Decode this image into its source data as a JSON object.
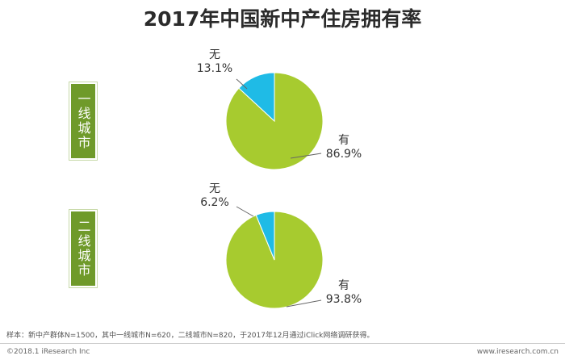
{
  "title": "2017年中国新中产住房拥有率",
  "colors": {
    "yes": "#a7cb2f",
    "no": "#1fbbe6",
    "tag": "#6f9a2a"
  },
  "chart_data": [
    {
      "type": "pie",
      "group": "一线城市",
      "slices": [
        {
          "label": "有",
          "pct_label": "86.9%",
          "value": 86.9
        },
        {
          "label": "无",
          "pct_label": "13.1%",
          "value": 13.1
        }
      ]
    },
    {
      "type": "pie",
      "group": "二线城市",
      "slices": [
        {
          "label": "有",
          "pct_label": "93.8%",
          "value": 93.8
        },
        {
          "label": "无",
          "pct_label": "6.2%",
          "value": 6.2
        }
      ]
    }
  ],
  "footnote": "样本：新中产群体N=1500，其中一线城市N=620，二线城市N=820，于2017年12月通过iClick网络调研获得。",
  "footer": {
    "left": "©2018.1 iResearch Inc",
    "right": "www.iresearch.com.cn"
  }
}
